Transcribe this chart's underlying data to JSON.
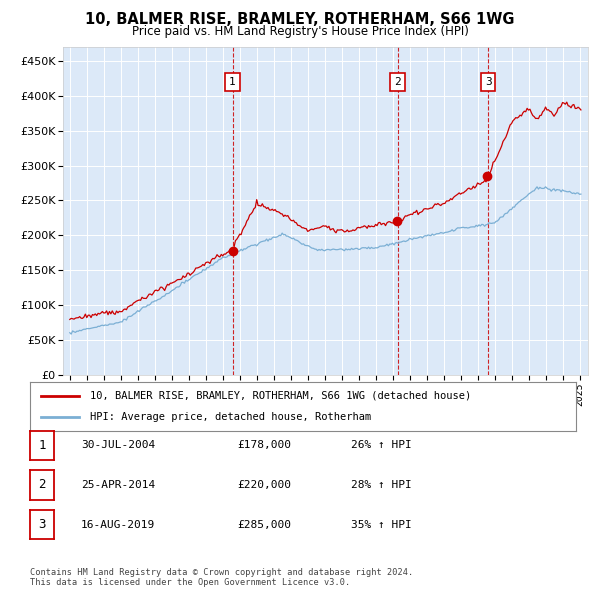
{
  "title": "10, BALMER RISE, BRAMLEY, ROTHERHAM, S66 1WG",
  "subtitle": "Price paid vs. HM Land Registry's House Price Index (HPI)",
  "plot_bg_color": "#dce9f8",
  "red_line_color": "#cc0000",
  "blue_line_color": "#7bafd4",
  "sale_prices": [
    178000,
    220000,
    285000
  ],
  "sale_labels": [
    "1",
    "2",
    "3"
  ],
  "sale_pct": [
    "26%",
    "28%",
    "35%"
  ],
  "sale_date_labels": [
    "30-JUL-2004",
    "25-APR-2014",
    "16-AUG-2019"
  ],
  "sale_years": [
    2004.58,
    2014.29,
    2019.62
  ],
  "ylim": [
    0,
    470000
  ],
  "yticks": [
    0,
    50000,
    100000,
    150000,
    200000,
    250000,
    300000,
    350000,
    400000,
    450000
  ],
  "footer_text": "Contains HM Land Registry data © Crown copyright and database right 2024.\nThis data is licensed under the Open Government Licence v3.0.",
  "legend_line1": "10, BALMER RISE, BRAMLEY, ROTHERHAM, S66 1WG (detached house)",
  "legend_line2": "HPI: Average price, detached house, Rotherham"
}
